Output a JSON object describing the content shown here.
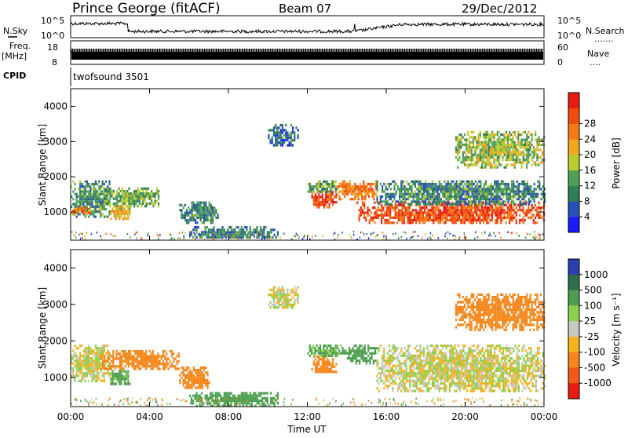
{
  "header": {
    "station": "Prince George (fitACF)",
    "beam": "Beam 07",
    "date": "29/Dec/2012"
  },
  "strips": {
    "nsky_label": "N.Sky",
    "nsearch_label": "N.Search",
    "nsearch_dots": ".......",
    "noise_ticks_left": [
      "10^5",
      "10^0"
    ],
    "noise_ticks_right": [
      "10^5",
      "10^0"
    ],
    "freq_label": "Freq.",
    "freq_unit": "[MHz]",
    "freq_ticks": [
      "18",
      "8"
    ],
    "nave_label": "Nave",
    "nave_dots": "....",
    "nave_ticks": [
      "60",
      "0"
    ],
    "cpid_label": "CPID",
    "cpid_value": "twofsound 3501"
  },
  "colors": {
    "power_scale": [
      "#1a1aff",
      "#2b4fb8",
      "#2f7d55",
      "#4f9f59",
      "#b8cc2e",
      "#f0a81c",
      "#f57a14",
      "#f24b0e",
      "#e81b10"
    ],
    "velocity_scale": [
      "#2a3fb0",
      "#2e6e4a",
      "#4d9e50",
      "#8bd14f",
      "#c8c8c3",
      "#f6b21a",
      "#f5861a",
      "#f25a16",
      "#e81b10"
    ],
    "noise_trace": "#000000"
  },
  "chart_data": [
    {
      "type": "heatmap",
      "title": "Power",
      "xlabel": "",
      "ylabel": "Slant Range [km]",
      "x_ticks": [
        "00:00",
        "04:00",
        "08:00",
        "12:00",
        "16:00",
        "20:00",
        "00:00"
      ],
      "y_ticks": [
        "1000",
        "2000",
        "3000",
        "4000"
      ],
      "xlim_hours": [
        0,
        24
      ],
      "ylim_km": [
        200,
        4500
      ],
      "colorbar_label": "Power [dB]",
      "colorbar_ticks": [
        "4",
        "8",
        "12",
        "16",
        "20",
        "24",
        "28"
      ],
      "colorbar_range": [
        0,
        30
      ],
      "echo_regions": [
        {
          "t0": 0.0,
          "t1": 2.0,
          "r0": 900,
          "r1": 1900,
          "val": 10
        },
        {
          "t0": 0.0,
          "t1": 1.0,
          "r0": 950,
          "r1": 1150,
          "val": 22
        },
        {
          "t0": 1.7,
          "t1": 4.5,
          "r0": 1200,
          "r1": 1700,
          "val": 12
        },
        {
          "t0": 2.0,
          "t1": 3.0,
          "r0": 800,
          "r1": 1200,
          "val": 18
        },
        {
          "t0": 5.5,
          "t1": 7.5,
          "r0": 700,
          "r1": 1300,
          "val": 9
        },
        {
          "t0": 6.0,
          "t1": 10.5,
          "r0": 250,
          "r1": 600,
          "val": 8
        },
        {
          "t0": 10.0,
          "t1": 11.5,
          "r0": 2900,
          "r1": 3500,
          "val": 6
        },
        {
          "t0": 12.2,
          "t1": 13.5,
          "r0": 1150,
          "r1": 1600,
          "val": 26
        },
        {
          "t0": 12.0,
          "t1": 13.6,
          "r0": 1600,
          "r1": 1900,
          "val": 11
        },
        {
          "t0": 13.5,
          "t1": 15.5,
          "r0": 1400,
          "r1": 1900,
          "val": 22
        },
        {
          "t0": 14.5,
          "t1": 24.0,
          "r0": 700,
          "r1": 1300,
          "val": 25
        },
        {
          "t0": 15.5,
          "t1": 24.0,
          "r0": 1200,
          "r1": 1900,
          "val": 9
        },
        {
          "t0": 19.5,
          "t1": 24.0,
          "r0": 2300,
          "r1": 3300,
          "val": 14
        }
      ]
    },
    {
      "type": "heatmap",
      "title": "Velocity",
      "xlabel": "Time UT",
      "ylabel": "Slant Range [km]",
      "x_ticks": [
        "00:00",
        "04:00",
        "08:00",
        "12:00",
        "16:00",
        "20:00",
        "00:00"
      ],
      "y_ticks": [
        "1000",
        "2000",
        "3000",
        "4000"
      ],
      "xlim_hours": [
        0,
        24
      ],
      "ylim_km": [
        200,
        4500
      ],
      "colorbar_label": "Velocity [m s⁻¹]",
      "colorbar_ticks": [
        "1000",
        "500",
        "100",
        "25",
        "-25",
        "-100",
        "-500",
        "-1000"
      ],
      "echo_regions": [
        {
          "t0": 0.0,
          "t1": 2.0,
          "r0": 900,
          "r1": 1900,
          "val": 0
        },
        {
          "t0": 1.5,
          "t1": 5.5,
          "r0": 1200,
          "r1": 1750,
          "val": -300
        },
        {
          "t0": 2.0,
          "t1": 3.0,
          "r0": 800,
          "r1": 1200,
          "val": 150
        },
        {
          "t0": 5.5,
          "t1": 7.0,
          "r0": 700,
          "r1": 1300,
          "val": -400
        },
        {
          "t0": 6.0,
          "t1": 10.5,
          "r0": 250,
          "r1": 600,
          "val": 200
        },
        {
          "t0": 10.0,
          "t1": 11.5,
          "r0": 2900,
          "r1": 3500,
          "val": 0
        },
        {
          "t0": 12.2,
          "t1": 13.5,
          "r0": 1150,
          "r1": 1600,
          "val": -300
        },
        {
          "t0": 12.0,
          "t1": 14.0,
          "r0": 1600,
          "r1": 1900,
          "val": 150
        },
        {
          "t0": 14.0,
          "t1": 15.5,
          "r0": 1400,
          "r1": 1900,
          "val": 300
        },
        {
          "t0": 15.5,
          "t1": 24.0,
          "r0": 600,
          "r1": 1900,
          "val": 0
        },
        {
          "t0": 19.5,
          "t1": 24.0,
          "r0": 2300,
          "r1": 3300,
          "val": -400
        }
      ]
    }
  ]
}
